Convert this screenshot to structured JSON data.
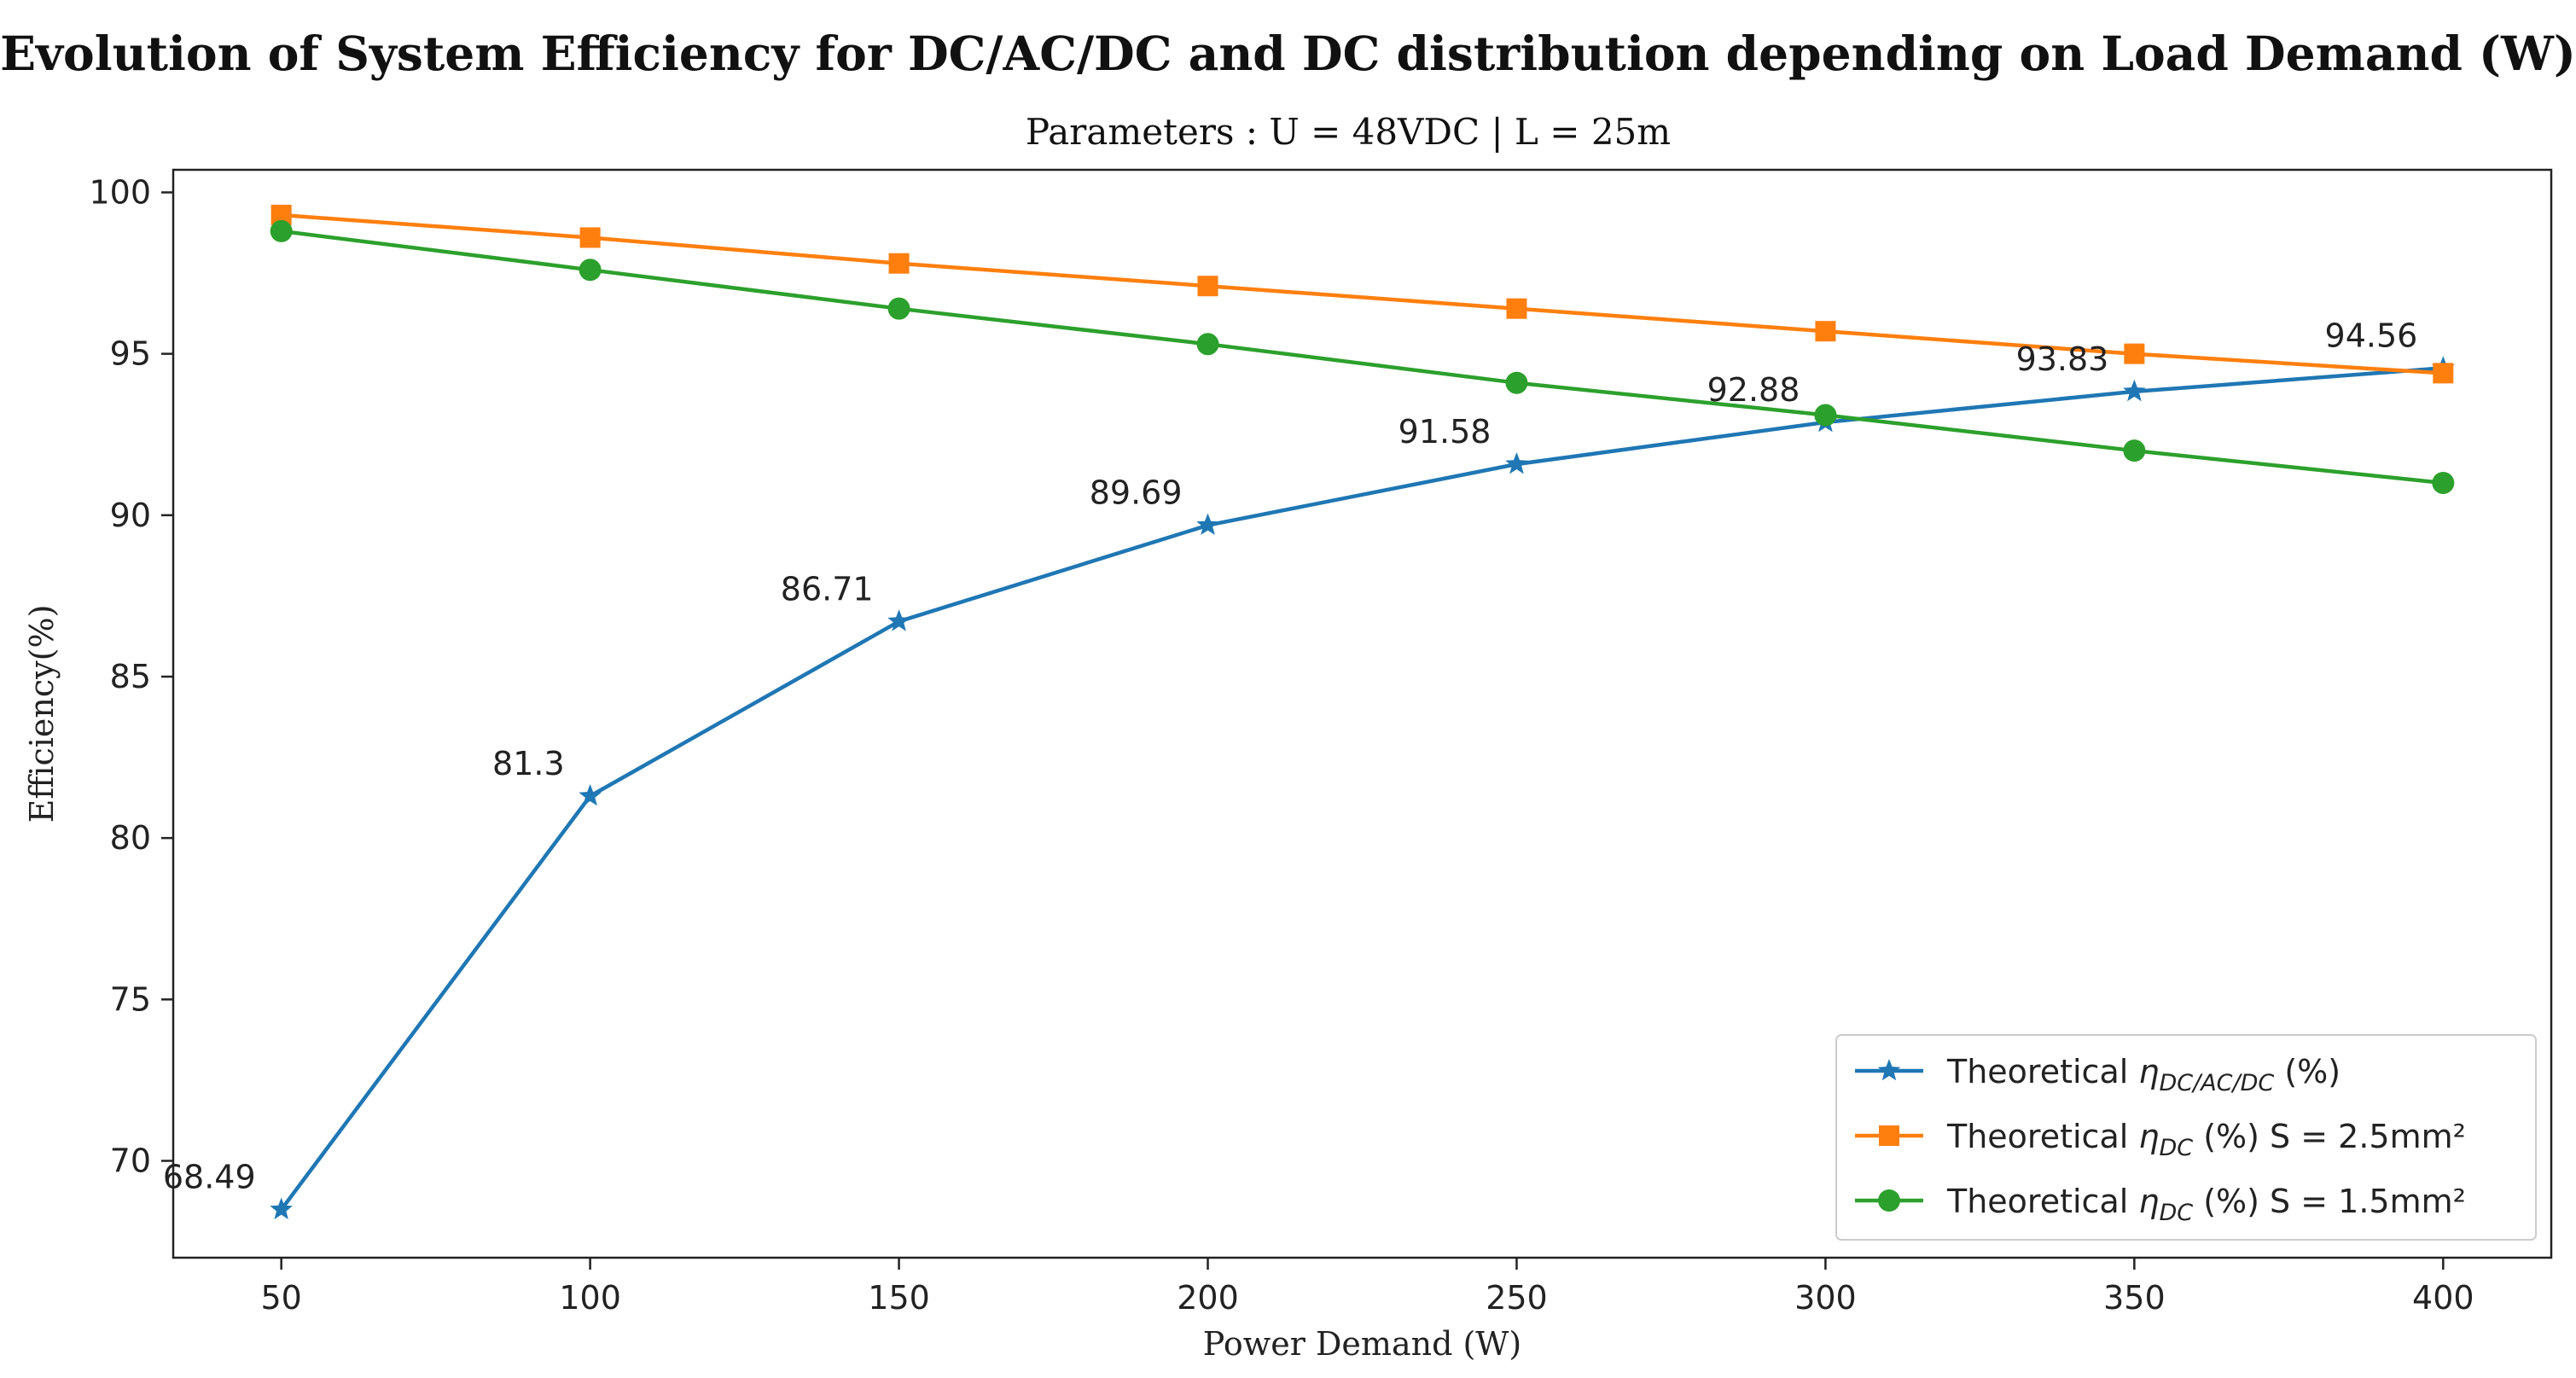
{
  "chart_data": {
    "type": "line",
    "title": "Evolution of System Efficiency for DC/AC/DC and DC distribution depending on Load Demand (W)",
    "subtitle": "Parameters : U = 48VDC  |  L = 25m",
    "xlabel": "Power Demand (W)",
    "ylabel": "Efficiency(%)",
    "x": [
      50,
      100,
      150,
      200,
      250,
      300,
      350,
      400
    ],
    "xlim": [
      32.5,
      417.5
    ],
    "ylim": [
      67,
      100.7
    ],
    "xticks": [
      50,
      100,
      150,
      200,
      250,
      300,
      350,
      400
    ],
    "yticks": [
      70,
      75,
      80,
      85,
      90,
      95,
      100
    ],
    "legend_position": "lower-right",
    "series": [
      {
        "id": "dcacdc",
        "name_prefix": "Theoretical ",
        "name_symbol": "η",
        "name_sub": "DC/AC/DC",
        "name_suffix": " (%)",
        "color": "#1f77b4",
        "marker": "star",
        "values": [
          68.49,
          81.3,
          86.71,
          89.69,
          91.58,
          92.88,
          93.83,
          94.56
        ],
        "data_labels": [
          "68.49",
          "81.3",
          "86.71",
          "89.69",
          "91.58",
          "92.88",
          "93.83",
          "94.56"
        ]
      },
      {
        "id": "dc25",
        "name_prefix": "Theoretical ",
        "name_symbol": "η",
        "name_sub": "DC",
        "name_suffix": " (%) S = 2.5mm²",
        "color": "#ff7f0e",
        "marker": "square",
        "values": [
          99.3,
          98.6,
          97.8,
          97.1,
          96.4,
          95.7,
          95.0,
          94.4
        ]
      },
      {
        "id": "dc15",
        "name_prefix": "Theoretical ",
        "name_symbol": "η",
        "name_sub": "DC",
        "name_suffix": " (%) S = 1.5mm²",
        "color": "#2ca02c",
        "marker": "circle",
        "values": [
          98.8,
          97.6,
          96.4,
          95.3,
          94.1,
          93.1,
          92.0,
          91.0
        ]
      }
    ]
  }
}
